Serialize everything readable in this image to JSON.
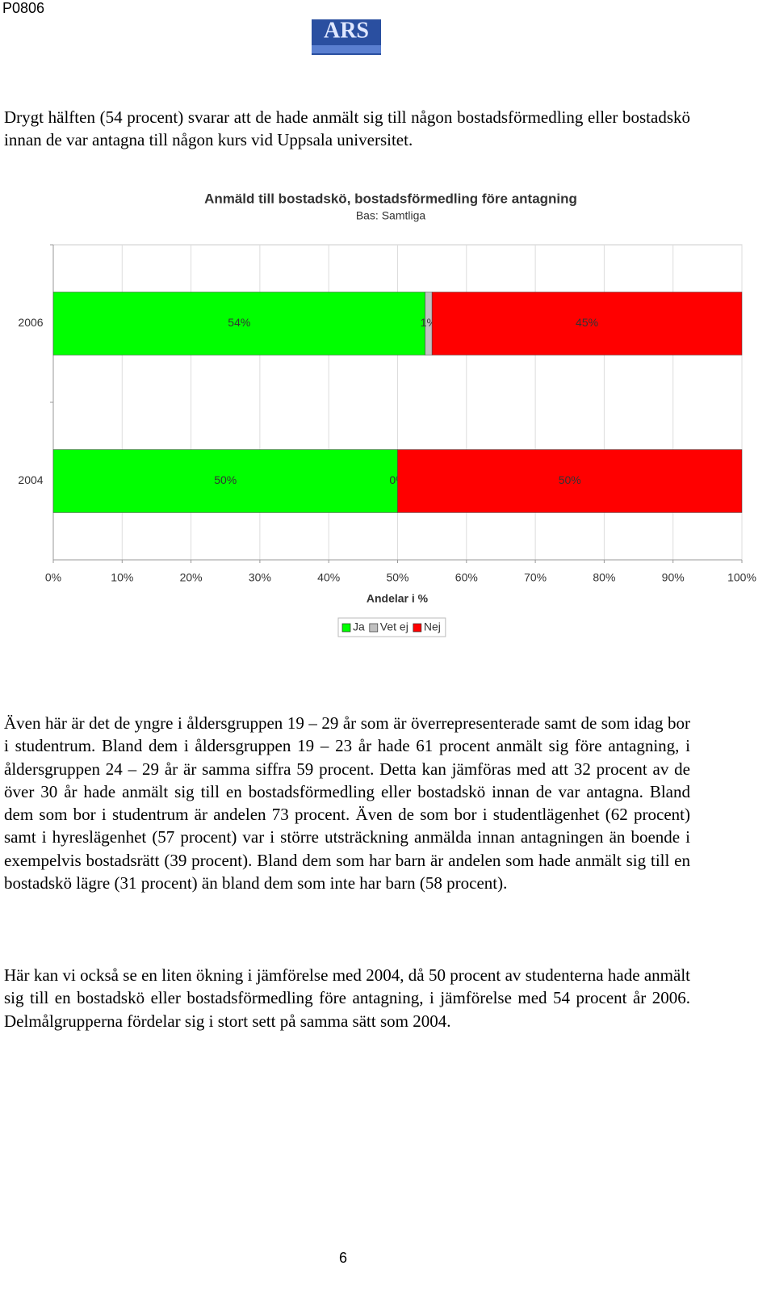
{
  "header": {
    "code": "P0806",
    "logo": "ARS"
  },
  "paragraphs": [
    "Drygt hälften (54 procent) svarar att de hade anmält sig till någon bostadsförmedling eller bostadskö innan de var antagna till någon kurs vid Uppsala universitet.",
    "Även här är det de yngre i åldersgruppen 19 – 29 år som är överrepresenterade samt de som idag bor i studentrum. Bland dem i åldersgruppen 19 – 23 år hade 61 procent anmält sig före antagning, i åldersgruppen 24 – 29 år är samma siffra 59 procent. Detta kan jämföras med att 32 procent av de över 30 år hade anmält sig till en bostadsförmedling eller bostadskö innan de var antagna. Bland dem som bor i studentrum är andelen 73 procent. Även de som bor i studentlägenhet (62 procent) samt i hyreslägenhet (57 procent) var i större utsträckning anmälda innan antagningen än boende i exempelvis bostadsrätt (39 procent). Bland dem som har barn är andelen som hade anmält sig till en bostadskö lägre (31 procent) än bland dem som inte har barn (58 procent).",
    "Här kan vi också se en liten ökning i jämförelse med 2004, då 50 procent av studenterna hade anmält sig till en bostadskö eller bostadsförmedling före antagning, i jämförelse med 54 procent år 2006. Delmålgrupperna fördelar sig i stort sett på samma sätt som 2004."
  ],
  "page_number": "6",
  "chart_data": {
    "type": "stacked-hbar",
    "title": "Anmäld till bostadskö, bostadsförmedling före antagning",
    "subtitle": "Bas: Samtliga",
    "xlabel": "Andelar i %",
    "categories": [
      "2006",
      "2004"
    ],
    "series": [
      {
        "name": "Ja",
        "color": "#00ff00",
        "values": [
          54,
          50
        ],
        "value_labels": [
          "54%",
          "50%"
        ]
      },
      {
        "name": "Vet ej",
        "color": "#c0c0c0",
        "values": [
          1,
          0
        ],
        "value_labels": [
          "1%",
          "0%"
        ]
      },
      {
        "name": "Nej",
        "color": "#ff0000",
        "values": [
          45,
          50
        ],
        "value_labels": [
          "45%",
          "50%"
        ]
      }
    ],
    "xlim": [
      0,
      100
    ],
    "xticks": [
      {
        "value": 0,
        "label": "0%"
      },
      {
        "value": 10,
        "label": "10%"
      },
      {
        "value": 20,
        "label": "20%"
      },
      {
        "value": 30,
        "label": "30%"
      },
      {
        "value": 40,
        "label": "40%"
      },
      {
        "value": 50,
        "label": "50%"
      },
      {
        "value": 60,
        "label": "60%"
      },
      {
        "value": 70,
        "label": "70%"
      },
      {
        "value": 80,
        "label": "80%"
      },
      {
        "value": 90,
        "label": "90%"
      },
      {
        "value": 100,
        "label": "100%"
      }
    ],
    "grid": true,
    "legend": "bottom"
  }
}
